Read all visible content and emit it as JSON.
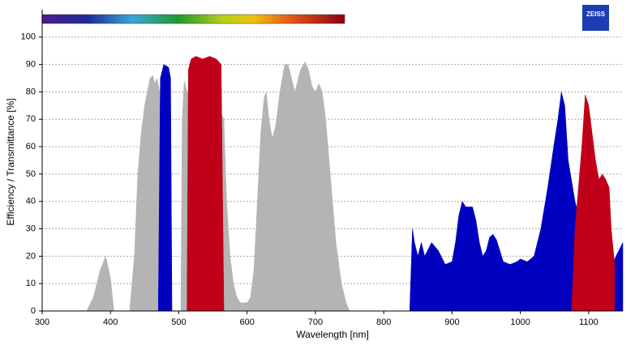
{
  "chart_data": {
    "type": "area",
    "logo": "ZEISS",
    "x_label": "Wavelength [nm]",
    "y_label": "Efficiency / Transmittance [%]",
    "xlim": [
      300,
      1150
    ],
    "ylim": [
      0,
      110
    ],
    "xticks": [
      300,
      400,
      500,
      600,
      700,
      800,
      900,
      1000,
      1100
    ],
    "yticks": [
      0,
      10,
      20,
      30,
      40,
      50,
      60,
      70,
      80,
      90,
      100
    ],
    "grid": true,
    "series": [
      {
        "color": "#b4b4b4",
        "x": [
          365,
          375,
          385,
          393,
          400,
          405,
          428,
          435,
          440,
          445,
          450,
          458,
          462,
          465,
          468,
          472,
          475,
          503,
          505,
          508,
          512,
          540,
          566,
          570,
          575,
          580,
          585,
          590,
          600,
          605,
          610,
          615,
          620,
          625,
          628,
          632,
          637,
          642,
          648,
          655,
          660,
          665,
          670,
          678,
          685,
          690,
          695,
          700,
          705,
          710,
          715,
          720,
          725,
          730,
          738,
          745,
          750
        ],
        "values": [
          0,
          5,
          15,
          20,
          12,
          0,
          0,
          20,
          50,
          65,
          75,
          85,
          86,
          83,
          85,
          80,
          0,
          0,
          70,
          84,
          80,
          85,
          70,
          40,
          20,
          10,
          5,
          3,
          3,
          5,
          15,
          40,
          65,
          78,
          80,
          70,
          63,
          68,
          80,
          90,
          90,
          85,
          80,
          88,
          91,
          88,
          82,
          80,
          83,
          80,
          70,
          55,
          40,
          25,
          10,
          3,
          0
        ]
      },
      {
        "color": "#0000c0",
        "x": [
          470,
          473,
          478,
          485,
          488,
          490,
          600,
          838,
          842,
          845,
          850,
          855,
          860,
          870,
          880,
          890,
          900,
          905,
          910,
          915,
          920,
          930,
          935,
          940,
          945,
          950,
          955,
          960,
          965,
          970,
          975,
          985,
          995,
          1000,
          1010,
          1020,
          1030,
          1040,
          1050,
          1055,
          1060,
          1065,
          1070,
          1080,
          1090,
          1100,
          1110,
          1120,
          1130,
          1135,
          1140,
          1150,
          1150
        ],
        "values": [
          0,
          85,
          90,
          89,
          85,
          0,
          null,
          0,
          30,
          25,
          20,
          25,
          20,
          25,
          22,
          17,
          18,
          25,
          35,
          40,
          38,
          38,
          33,
          25,
          20,
          22,
          27,
          28,
          26,
          22,
          18,
          17,
          18,
          19,
          18,
          20,
          30,
          45,
          62,
          70,
          80,
          75,
          55,
          40,
          30,
          28,
          25,
          20,
          18,
          17,
          20,
          25,
          0
        ]
      },
      {
        "color": "#c00018",
        "x": [
          512,
          514,
          518,
          525,
          535,
          545,
          555,
          562,
          566,
          800,
          1075,
          1080,
          1085,
          1090,
          1095,
          1100,
          1105,
          1110,
          1115,
          1120,
          1125,
          1130,
          1133,
          1138
        ],
        "values": [
          0,
          88,
          92,
          93,
          92,
          93,
          92,
          90,
          0,
          null,
          0,
          30,
          45,
          60,
          79,
          75,
          65,
          55,
          48,
          50,
          48,
          45,
          30,
          17
        ]
      }
    ]
  }
}
